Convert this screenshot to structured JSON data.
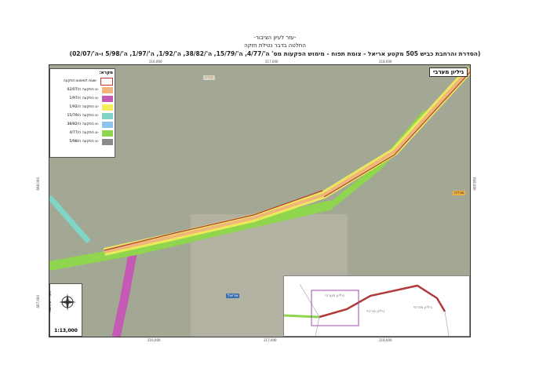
{
  "header": {
    "line1": "-עזר לעיון הציבור-",
    "line2": "החלטה בדבר נטילת חזקה",
    "line3": "(הסדרת והרחבת כביש 505 מקטע אריאל - צומת תפוח - מימוש הפקעות מס' ה'/4/77, ה'/15/79, ה'/38/82, ה'/1/92, ה'/1/97, ה'/5/98 ו-ה'/02/07)"
  },
  "grid": {
    "x_ticks": [
      "216,000",
      "217,000",
      "218,000"
    ],
    "y_ticks": [
      "668,000",
      "667,000"
    ]
  },
  "legend": {
    "title": "מקרא:",
    "items": [
      {
        "label": "-שטח למימוש הפקעה",
        "color": "#ffffff",
        "outline": "#b03a3a"
      },
      {
        "label": "-גו הפקעה ה/02/07",
        "color": "#f0b57a"
      },
      {
        "label": "-גו הפקעה ה/1/97",
        "color": "#c45ab3"
      },
      {
        "label": "-גו הפקעה ה/1/92",
        "color": "#f3ee5a"
      },
      {
        "label": "-גו הפקעה ה/15/79",
        "color": "#7fd6c6"
      },
      {
        "label": "-גו הפקעה ה/38/82",
        "color": "#8ec4ee"
      },
      {
        "label": "-גו הפקעה ה/4/77",
        "color": "#8fd64e"
      },
      {
        "label": "-גו הפקעה ה/5/98",
        "color": "#8a8a8a"
      }
    ]
  },
  "map": {
    "sheet_label": "גיליון מערבי",
    "places": [
      "קירה",
      "מרדה",
      "אריאל"
    ],
    "scale": "1:13,000",
    "credit": "מיפוי: י. שרון ושות'"
  },
  "inset": {
    "labels": [
      "גיליון מערבי",
      "גיליון מרכזי",
      "גיליון מזרחי"
    ]
  }
}
